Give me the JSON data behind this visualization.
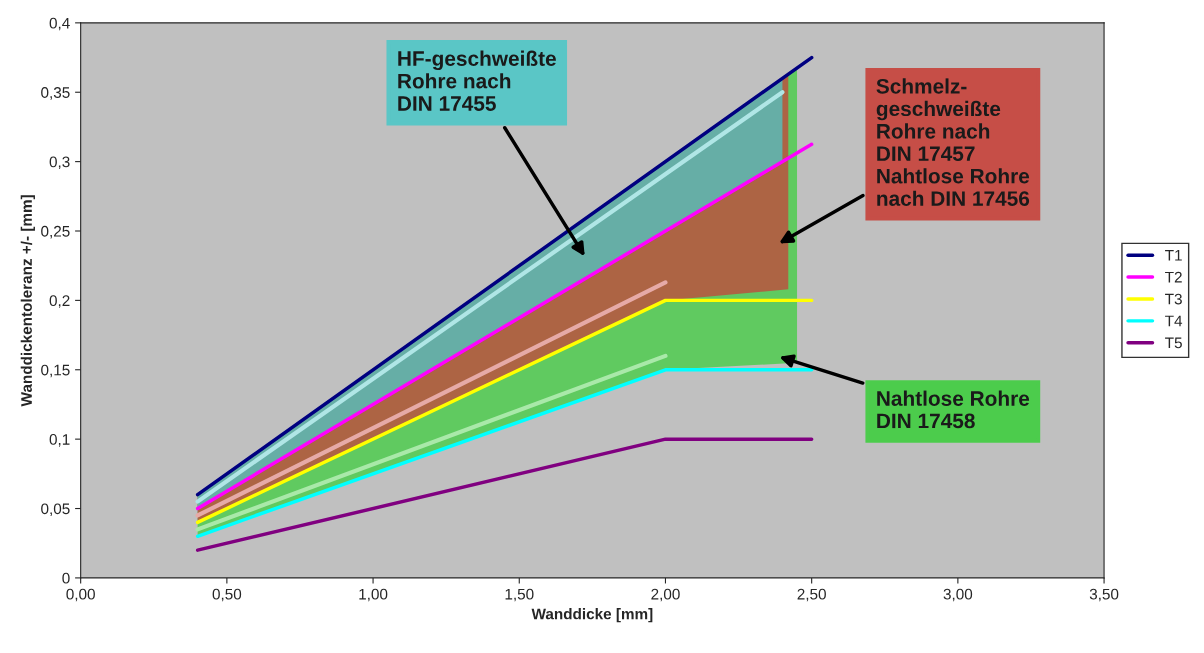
{
  "chart_data": {
    "type": "line",
    "xlabel": "Wanddicke [mm]",
    "ylabel": "Wanddickentoleranz +/- [mm]",
    "xlim": [
      0,
      3.5
    ],
    "ylim": [
      0,
      0.4
    ],
    "xticks": [
      {
        "value": 0,
        "label": "0,00"
      },
      {
        "value": 0.5,
        "label": "0,50"
      },
      {
        "value": 1,
        "label": "1,00"
      },
      {
        "value": 1.5,
        "label": "1,50"
      },
      {
        "value": 2,
        "label": "2,00"
      },
      {
        "value": 2.5,
        "label": "2,50"
      },
      {
        "value": 3,
        "label": "3,00"
      },
      {
        "value": 3.5,
        "label": "3,50"
      }
    ],
    "yticks": [
      0,
      {
        "value": 0.05,
        "label": "0,05"
      },
      {
        "value": 0.1,
        "label": "0,1"
      },
      {
        "value": 0.15,
        "label": "0,15"
      },
      {
        "value": 0.2,
        "label": "0,2"
      },
      {
        "value": 0.25,
        "label": "0,25"
      },
      {
        "value": 0.3,
        "label": "0,3"
      },
      {
        "value": 0.35,
        "label": "0,35"
      },
      {
        "value": 0.4,
        "label": "0,4"
      }
    ],
    "grid": false,
    "legend": "right",
    "marker": "none",
    "line_style": "solid",
    "series": [
      {
        "type": "line",
        "color": "#a9e9a9",
        "x": [
          0.4,
          2.0,
          2.45
        ],
        "values": [
          0.035,
          0.16,
          null
        ],
        "lower": [
          0.03,
          0.15,
          0.155
        ],
        "upper": [
          0.06,
          0.3,
          0.3675
        ]
      },
      {
        "type": "line",
        "color": "#e6aaa7",
        "x": [
          0.4,
          2.0,
          2.42
        ],
        "values": [
          0.045,
          0.213,
          null
        ],
        "lower": [
          0.04,
          0.2,
          0.208
        ],
        "upper": [
          0.06,
          0.3,
          0.363
        ]
      },
      {
        "type": "line",
        "color": "#b0e6e6",
        "x": [
          0.4,
          2.4
        ],
        "values": [
          0.055,
          0.35
        ],
        "lower": [
          0.05,
          0.3
        ],
        "upper": [
          0.06,
          0.36
        ]
      },
      {
        "name": "T1",
        "color": "#000080",
        "x": [
          0.4,
          2.5
        ],
        "values": [
          0.06,
          0.375
        ]
      },
      {
        "name": "T2",
        "color": "#ff00ff",
        "x": [
          0.4,
          2.5
        ],
        "values": [
          0.05,
          0.3125
        ]
      },
      {
        "name": "T3",
        "color": "#ffff00",
        "x": [
          0.4,
          2.0,
          2.5
        ],
        "values": [
          0.04,
          0.2,
          0.2
        ]
      },
      {
        "name": "T4",
        "color": "#00ffff",
        "x": [
          0.4,
          2.0,
          2.5
        ],
        "values": [
          0.03,
          0.15,
          0.15
        ]
      },
      {
        "name": "T5",
        "color": "#800080",
        "x": [
          0.4,
          2.0,
          2.5
        ],
        "values": [
          0.02,
          0.1,
          0.1
        ]
      }
    ],
    "annotations": [
      "Nahtlose Rohre\nDIN 17458",
      "Schmelz-\ngeschweißte\nRohre nach\nDIN 17457\nNahtlose Rohre\nnach DIN 17456",
      "HF-geschweißte\nRohre nach\nDIN 17455"
    ]
  }
}
